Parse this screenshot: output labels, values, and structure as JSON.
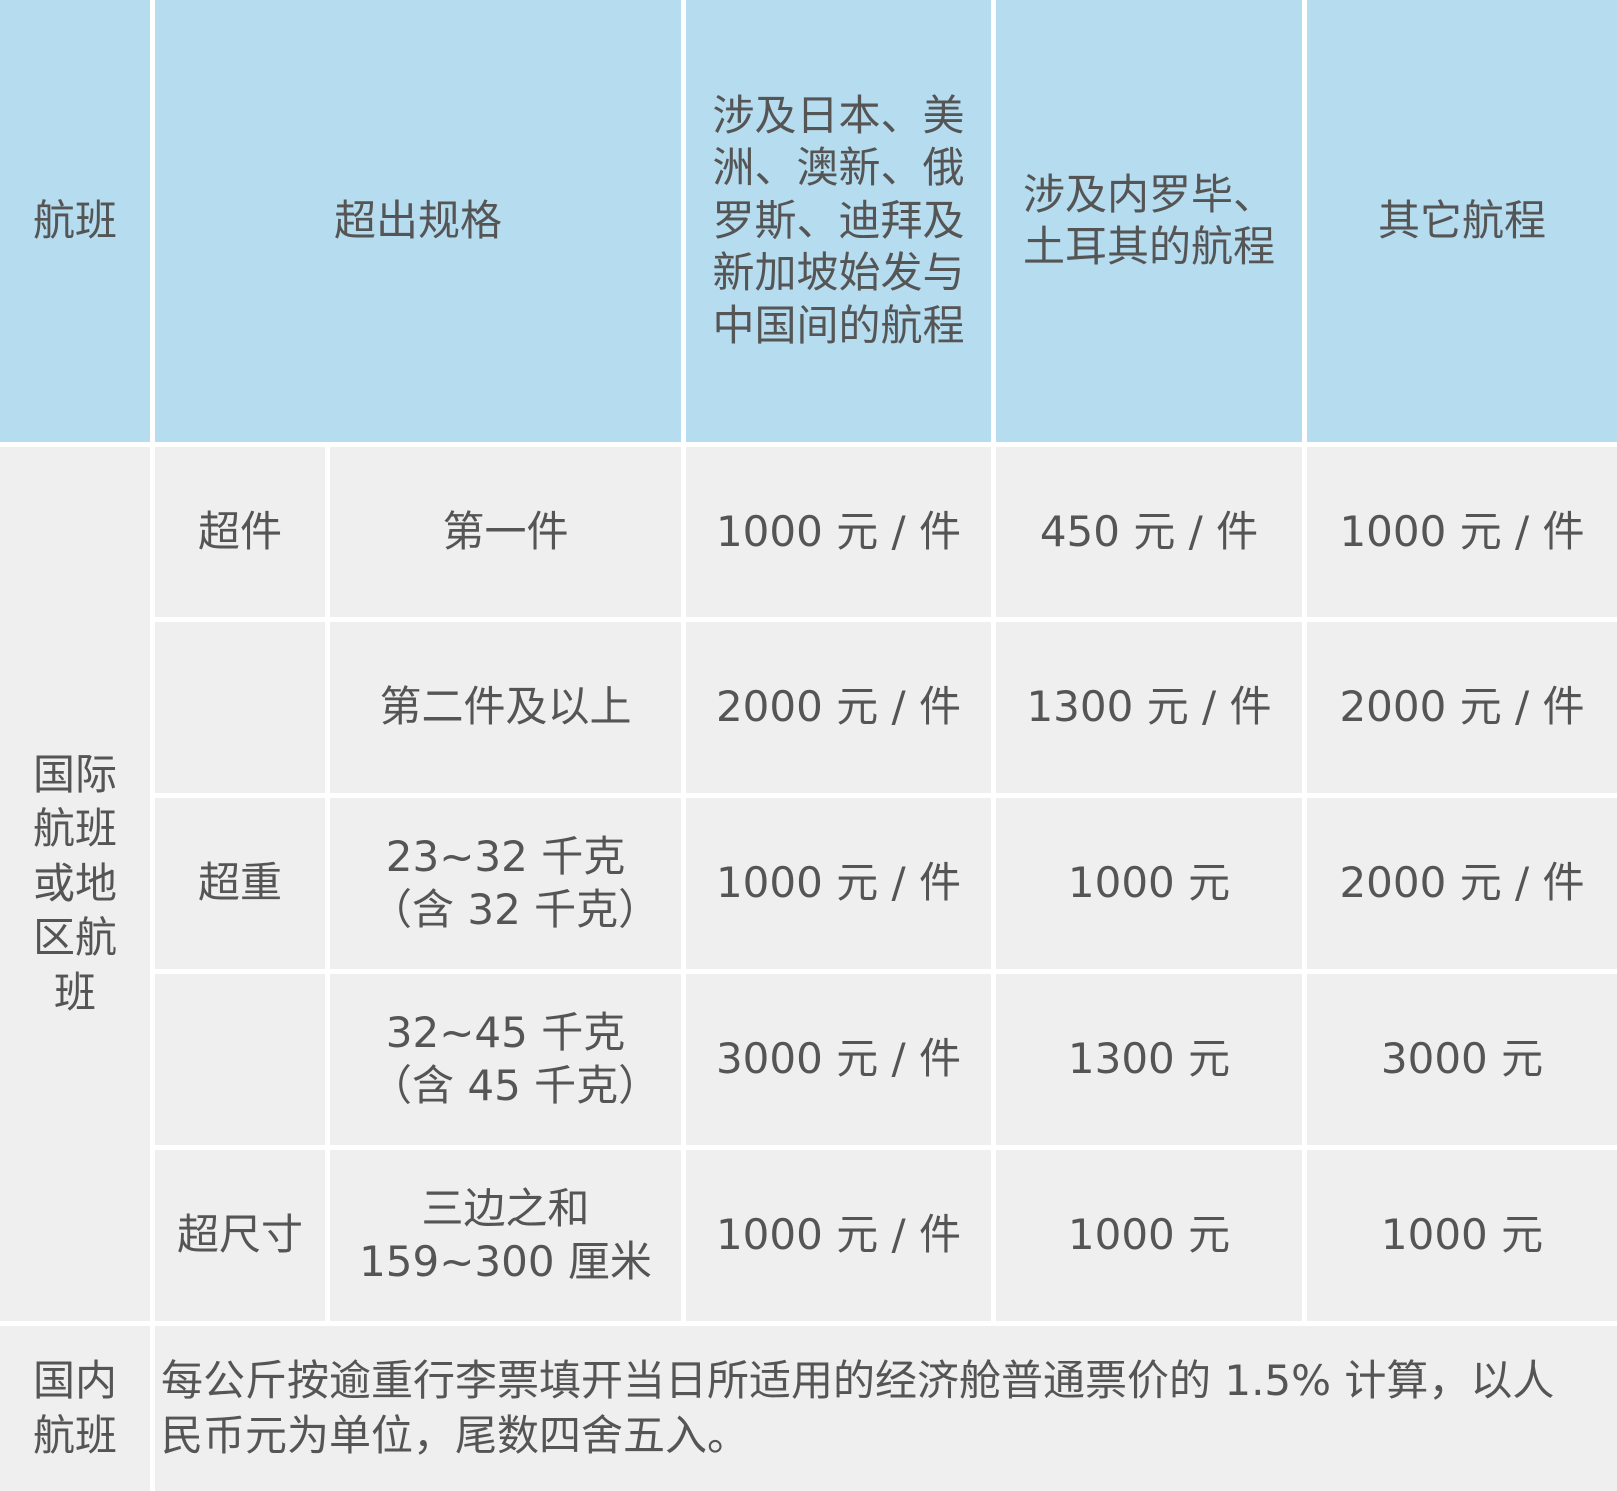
{
  "header": {
    "flight": "航班",
    "spec": "超出规格",
    "route1": "涉及日本、美洲、澳新、俄罗斯、迪拜及新加坡始发与中国间的航程",
    "route2": "涉及内罗毕、土耳其的航程",
    "route3": "其它航程"
  },
  "international": {
    "label": "国际航班或地区航班",
    "rows": [
      {
        "category": "超件",
        "spec": "第一件",
        "v1": "1000 元 / 件",
        "v2": "450 元 / 件",
        "v3": "1000 元 / 件"
      },
      {
        "category": "",
        "spec": "第二件及以上",
        "v1": "2000 元 / 件",
        "v2": "1300 元 / 件",
        "v3": "2000 元 / 件"
      },
      {
        "category": "超重",
        "spec": "23~32 千克（含 32 千克）",
        "v1": "1000 元 / 件",
        "v2": "1000 元",
        "v3": "2000 元 / 件"
      },
      {
        "category": "",
        "spec": "32~45 千克（含 45 千克）",
        "v1": "3000 元 / 件",
        "v2": "1300 元",
        "v3": "3000 元"
      },
      {
        "category": "超尺寸",
        "spec": "三边之和 159~300 厘米",
        "v1": "1000 元 / 件",
        "v2": "1000 元",
        "v3": "1000 元"
      }
    ]
  },
  "domestic": {
    "label": "国内航班",
    "text": "每公斤按逾重行李票填开当日所适用的经济舱普通票价的 1.5% 计算，以人民币元为单位，尾数四舍五入。"
  },
  "colors": {
    "header_bg": "#b6dcef",
    "cell_bg": "#efefef",
    "text": "#555555"
  }
}
